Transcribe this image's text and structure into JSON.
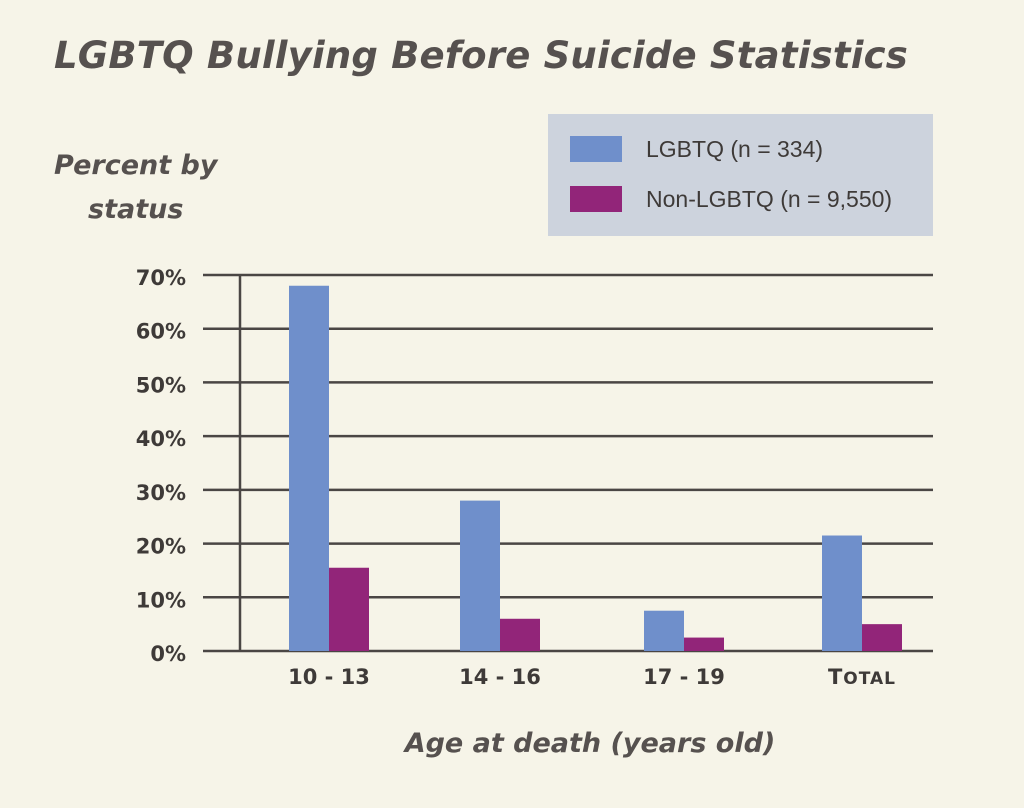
{
  "chart_data": {
    "type": "bar",
    "title": "LGBTQ Bullying Before Suicide Statistics",
    "ylabel_line1": "Percent by",
    "ylabel_line2": "status",
    "xlabel": "Age at death (years old)",
    "categories": [
      "10 - 13",
      "14 - 16",
      "17 - 19",
      "Total"
    ],
    "yticks": [
      "0%",
      "10%",
      "20%",
      "30%",
      "40%",
      "50%",
      "60%",
      "70%"
    ],
    "ylim": [
      0,
      70
    ],
    "grid": true,
    "legend_position": "top-right",
    "series": [
      {
        "name": "LGBTQ (n = 334)",
        "color": "#6f8fcb",
        "values": [
          68,
          28,
          7.5,
          21.5
        ]
      },
      {
        "name": "Non-LGBTQ (n = 9,550)",
        "color": "#922579",
        "values": [
          15.5,
          6,
          2.5,
          5
        ]
      }
    ]
  }
}
